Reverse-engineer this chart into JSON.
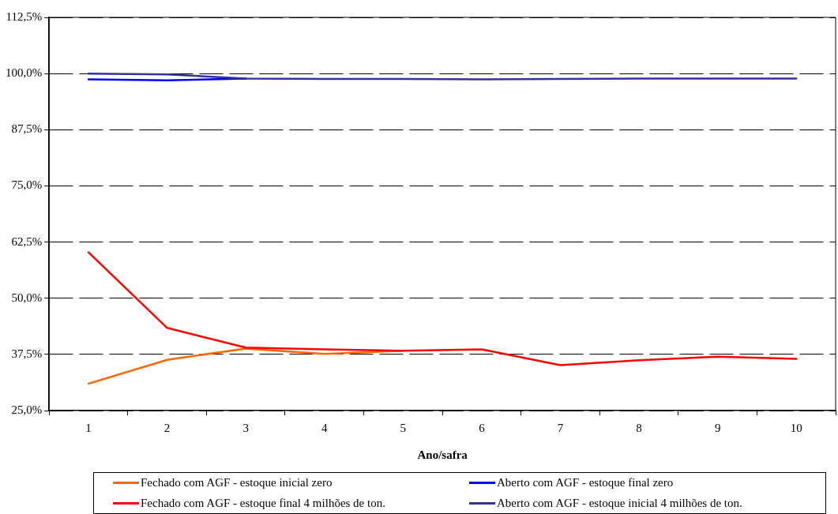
{
  "chart_data": {
    "type": "line",
    "xlabel": "Ano/safra",
    "categories": [
      "1",
      "2",
      "3",
      "4",
      "5",
      "6",
      "7",
      "8",
      "9",
      "10"
    ],
    "series": [
      {
        "name": "Fechado com AGF - estoque inicial zero",
        "color": "#ff6600",
        "values": [
          31.0,
          36.3,
          38.8,
          37.6,
          38.3,
          null,
          null,
          null,
          null,
          null
        ]
      },
      {
        "name": "Fechado com AGF - estoque final 4 milhões de ton.",
        "color": "#ff0000",
        "values": [
          60.2,
          43.4,
          39.0,
          38.6,
          38.3,
          38.6,
          35.1,
          36.2,
          37.0,
          36.5
        ]
      },
      {
        "name": "Aberto com AGF - estoque final zero",
        "color": "#0000ff",
        "values": [
          98.7,
          98.5,
          98.9,
          null,
          null,
          null,
          null,
          null,
          null,
          null
        ]
      },
      {
        "name": "Aberto com AGF - estoque inicial 4 milhões de ton.",
        "color": "#333399",
        "values": [
          100.0,
          99.8,
          98.9,
          98.8,
          98.8,
          98.7,
          98.8,
          98.9,
          98.9,
          98.9
        ]
      }
    ],
    "ylim": [
      25,
      112.5
    ],
    "yticks": [
      {
        "value": 25,
        "label": "25,0%"
      },
      {
        "value": 37.5,
        "label": "37,5%"
      },
      {
        "value": 50,
        "label": "50,0%"
      },
      {
        "value": 62.5,
        "label": "62,5%"
      },
      {
        "value": 75,
        "label": "75,0%"
      },
      {
        "value": 87.5,
        "label": "87,5%"
      },
      {
        "value": 100,
        "label": "100,0%"
      },
      {
        "value": 112.5,
        "label": "112,5%"
      }
    ],
    "grid": "y",
    "legend": "bottom",
    "marker": "none",
    "line_style": "solid"
  }
}
